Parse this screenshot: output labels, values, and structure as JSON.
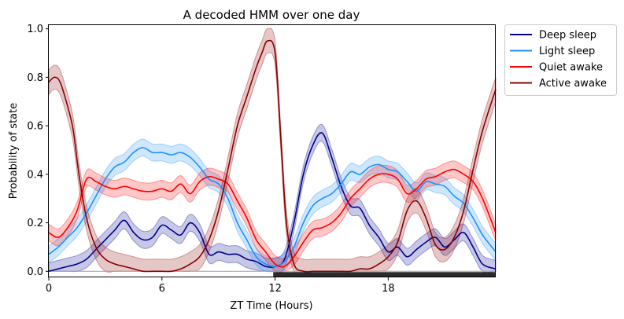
{
  "chart_data": {
    "type": "line",
    "title": "A decoded HMM over one day",
    "xlabel": "ZT Time (Hours)",
    "ylabel": "Probability of state",
    "xlim": [
      0,
      23.7
    ],
    "ylim": [
      -0.025,
      1.015
    ],
    "xticks": [
      0,
      6,
      12,
      18
    ],
    "yticks": [
      0.0,
      0.2,
      0.4,
      0.6,
      0.8,
      1.0
    ],
    "ytick_labels": [
      "0.0",
      "0.2",
      "0.4",
      "0.6",
      "0.8",
      "1.0"
    ],
    "legend_position": "outside-top-right",
    "dark_period": [
      11.9,
      23.7
    ],
    "series": [
      {
        "name": "Deep sleep",
        "color": "#00008b",
        "band": 0.035,
        "x": [
          0,
          0.5,
          1,
          1.5,
          2,
          2.5,
          3,
          3.5,
          4,
          4.5,
          5,
          5.5,
          6,
          6.5,
          7,
          7.5,
          8,
          8.5,
          9,
          9.5,
          10,
          10.5,
          11,
          11.5,
          12,
          12.5,
          13,
          13.5,
          14,
          14.5,
          15,
          15.5,
          16,
          16.5,
          17,
          17.5,
          18,
          18.5,
          19,
          19.5,
          20,
          20.5,
          21,
          21.5,
          22,
          22.5,
          23,
          23.7
        ],
        "values": [
          0.0,
          0.01,
          0.02,
          0.03,
          0.05,
          0.09,
          0.13,
          0.17,
          0.21,
          0.16,
          0.13,
          0.14,
          0.19,
          0.17,
          0.15,
          0.2,
          0.16,
          0.07,
          0.08,
          0.07,
          0.07,
          0.05,
          0.04,
          0.02,
          0.02,
          0.05,
          0.2,
          0.4,
          0.52,
          0.57,
          0.47,
          0.35,
          0.27,
          0.26,
          0.19,
          0.14,
          0.08,
          0.1,
          0.06,
          0.09,
          0.12,
          0.14,
          0.1,
          0.13,
          0.16,
          0.1,
          0.03,
          0.01
        ]
      },
      {
        "name": "Light sleep",
        "color": "#1e90ff",
        "band": 0.035,
        "x": [
          0,
          0.5,
          1,
          1.5,
          2,
          2.5,
          3,
          3.5,
          4,
          4.5,
          5,
          5.5,
          6,
          6.5,
          7,
          7.5,
          8,
          8.5,
          9,
          9.5,
          10,
          10.5,
          11,
          11.5,
          12,
          12.5,
          13,
          13.5,
          14,
          14.5,
          15,
          15.5,
          16,
          16.5,
          17,
          17.5,
          18,
          18.5,
          19,
          19.5,
          20,
          20.5,
          21,
          21.5,
          22,
          22.5,
          23,
          23.7
        ],
        "values": [
          0.07,
          0.1,
          0.14,
          0.18,
          0.24,
          0.31,
          0.38,
          0.43,
          0.45,
          0.49,
          0.51,
          0.49,
          0.49,
          0.48,
          0.49,
          0.47,
          0.43,
          0.38,
          0.36,
          0.3,
          0.2,
          0.13,
          0.06,
          0.03,
          0.02,
          0.04,
          0.1,
          0.2,
          0.27,
          0.3,
          0.32,
          0.36,
          0.41,
          0.4,
          0.43,
          0.44,
          0.42,
          0.41,
          0.37,
          0.33,
          0.37,
          0.36,
          0.35,
          0.31,
          0.28,
          0.22,
          0.15,
          0.08
        ]
      },
      {
        "name": "Quiet awake",
        "color": "#ff0000",
        "band": 0.035,
        "x": [
          0,
          0.5,
          1,
          1.5,
          2,
          2.5,
          3,
          3.5,
          4,
          4.5,
          5,
          5.5,
          6,
          6.5,
          7,
          7.5,
          8,
          8.5,
          9,
          9.5,
          10,
          10.5,
          11,
          11.5,
          12,
          12.5,
          13,
          13.5,
          14,
          14.5,
          15,
          15.5,
          16,
          16.5,
          17,
          17.5,
          18,
          18.5,
          19,
          19.5,
          20,
          20.5,
          21,
          21.5,
          22,
          22.5,
          23,
          23.7
        ],
        "values": [
          0.16,
          0.14,
          0.18,
          0.25,
          0.38,
          0.37,
          0.35,
          0.34,
          0.35,
          0.34,
          0.33,
          0.33,
          0.34,
          0.33,
          0.36,
          0.32,
          0.37,
          0.39,
          0.38,
          0.36,
          0.29,
          0.22,
          0.13,
          0.08,
          0.03,
          0.02,
          0.06,
          0.12,
          0.17,
          0.18,
          0.2,
          0.24,
          0.3,
          0.34,
          0.38,
          0.4,
          0.4,
          0.38,
          0.32,
          0.34,
          0.38,
          0.39,
          0.41,
          0.42,
          0.4,
          0.37,
          0.3,
          0.16
        ]
      },
      {
        "name": "Active awake",
        "color": "#8b0000",
        "band": 0.05,
        "x": [
          0,
          0.3,
          0.6,
          1,
          1.3,
          1.6,
          2,
          2.5,
          3,
          3.5,
          4,
          4.5,
          5,
          5.5,
          6,
          6.5,
          7,
          7.5,
          8,
          8.5,
          9,
          9.5,
          10,
          10.5,
          11,
          11.3,
          11.6,
          12,
          12.3,
          12.6,
          13,
          13.5,
          14,
          14.5,
          15,
          15.5,
          16,
          16.5,
          17,
          17.5,
          18,
          18.5,
          19,
          19.5,
          20,
          20.5,
          21,
          21.5,
          22,
          22.5,
          23,
          23.7
        ],
        "values": [
          0.78,
          0.8,
          0.78,
          0.68,
          0.58,
          0.4,
          0.22,
          0.1,
          0.05,
          0.03,
          0.02,
          0.01,
          0.0,
          0.0,
          0.0,
          0.0,
          0.01,
          0.03,
          0.06,
          0.13,
          0.25,
          0.42,
          0.6,
          0.72,
          0.84,
          0.9,
          0.95,
          0.9,
          0.55,
          0.2,
          0.03,
          0.0,
          0.0,
          0.0,
          0.0,
          0.0,
          0.0,
          0.01,
          0.01,
          0.03,
          0.06,
          0.12,
          0.25,
          0.29,
          0.22,
          0.11,
          0.09,
          0.14,
          0.25,
          0.42,
          0.58,
          0.75
        ]
      }
    ]
  }
}
